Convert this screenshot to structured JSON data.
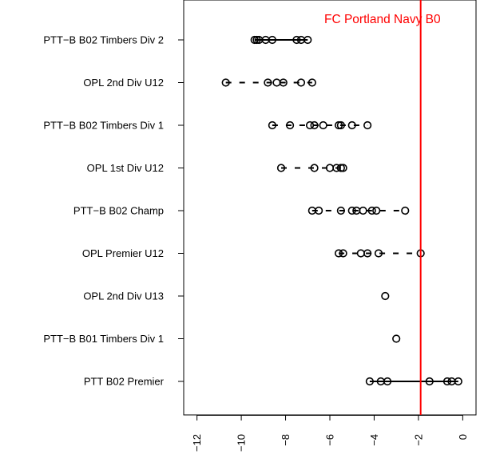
{
  "chart_data": {
    "type": "scatter",
    "title": "",
    "xlabel": "",
    "ylabel": "",
    "xlim": [
      -12.6,
      0.6
    ],
    "x_ticks": [
      -12,
      -10,
      -8,
      -6,
      -4,
      -2,
      0
    ],
    "x_tick_labels": [
      "-12",
      "-10",
      "-8",
      "-6",
      "-4",
      "-2",
      "0"
    ],
    "grid": false,
    "reference_line": {
      "x": -1.9,
      "label": "FC Portland Navy B0",
      "color": "#ff0000"
    },
    "point_color": "#000000",
    "categories": [
      "PTT−B B02 Timbers Div 2",
      "OPL 2nd Div U12",
      "PTT−B B02 Timbers Div 1",
      "OPL 1st Div U12",
      "PTT−B B02 Champ",
      "OPL Premier U12",
      "OPL 2nd Div U13",
      "PTT−B B01 Timbers Div 1",
      "PTT B02 Premier"
    ],
    "series": [
      {
        "name": "PTT−B B02 Timbers Div 2",
        "line": "solid",
        "values": [
          -9.4,
          -9.3,
          -9.2,
          -8.9,
          -8.6,
          -7.5,
          -7.3,
          -7.0
        ]
      },
      {
        "name": "OPL 2nd Div U12",
        "line": "dashed",
        "values": [
          -10.7,
          -8.8,
          -8.4,
          -8.1,
          -7.3,
          -6.8
        ]
      },
      {
        "name": "PTT−B B02 Timbers Div 1",
        "line": "dashed",
        "values": [
          -8.6,
          -7.8,
          -6.9,
          -6.7,
          -6.3,
          -5.6,
          -5.5,
          -5.0,
          -4.3
        ]
      },
      {
        "name": "OPL 1st Div U12",
        "line": "dashed",
        "values": [
          -8.2,
          -6.7,
          -6.0,
          -5.7,
          -5.5,
          -5.4
        ]
      },
      {
        "name": "PTT−B B02 Champ",
        "line": "dashed",
        "values": [
          -6.8,
          -6.5,
          -5.5,
          -5.0,
          -4.8,
          -4.5,
          -4.1,
          -3.9,
          -2.6
        ]
      },
      {
        "name": "OPL Premier U12",
        "line": "dashed",
        "values": [
          -5.6,
          -5.4,
          -4.6,
          -4.3,
          -3.8,
          -1.9
        ]
      },
      {
        "name": "OPL 2nd Div U13",
        "line": "none",
        "values": [
          -3.5
        ]
      },
      {
        "name": "PTT−B B01 Timbers Div 1",
        "line": "none",
        "values": [
          -3.0
        ]
      },
      {
        "name": "PTT B02 Premier",
        "line": "solid",
        "values": [
          -4.2,
          -3.7,
          -3.4,
          -1.5,
          -0.7,
          -0.5,
          -0.2
        ]
      }
    ]
  }
}
